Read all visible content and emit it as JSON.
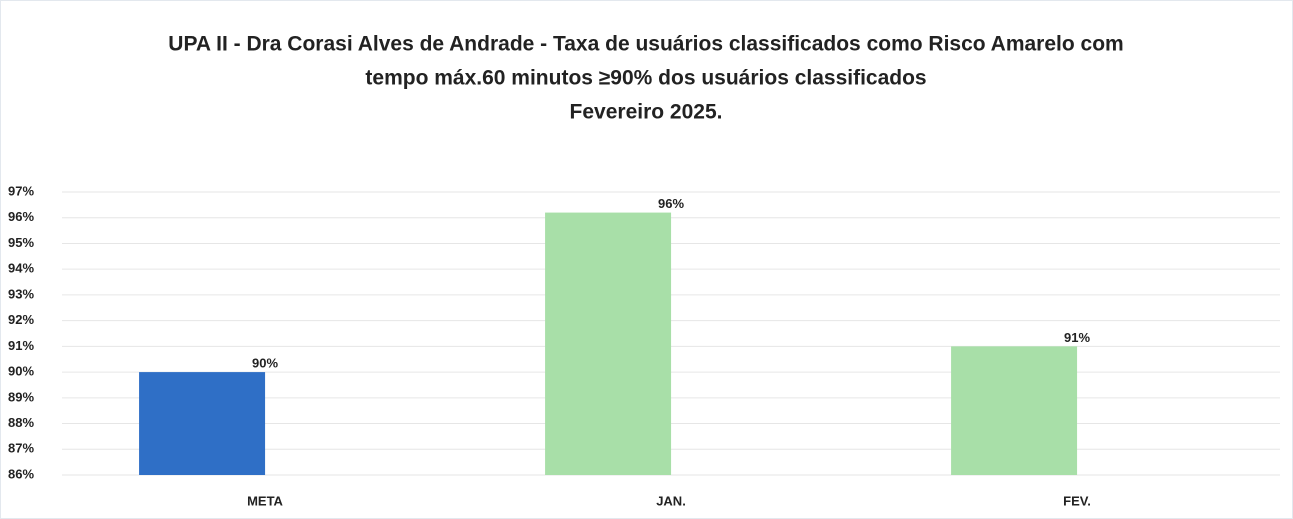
{
  "chart_data": {
    "type": "bar",
    "title": [
      "UPA II - Dra Corasi Alves de Andrade - Taxa de usuários classificados como Risco Amarelo com",
      "tempo máx.60 minutos ≥90% dos usuários classificados",
      "Fevereiro  2025."
    ],
    "categories": [
      "META",
      "JAN.",
      "FEV."
    ],
    "values": [
      90,
      96.2,
      91
    ],
    "value_labels": [
      "90%",
      "96%",
      "91%"
    ],
    "colors": [
      "#2f6fc6",
      "#a8dfa8",
      "#a8dfa8"
    ],
    "ylim": [
      86,
      97
    ],
    "yticks": [
      {
        "value": 86,
        "label": "86%"
      },
      {
        "value": 87,
        "label": "87%"
      },
      {
        "value": 88,
        "label": "88%"
      },
      {
        "value": 89,
        "label": "89%"
      },
      {
        "value": 90,
        "label": "90%"
      },
      {
        "value": 91,
        "label": "91%"
      },
      {
        "value": 92,
        "label": "92%"
      },
      {
        "value": 93,
        "label": "93%"
      },
      {
        "value": 94,
        "label": "94%"
      },
      {
        "value": 95,
        "label": "95%"
      },
      {
        "value": 96,
        "label": "96%"
      },
      {
        "value": 97,
        "label": "97%"
      }
    ],
    "grid": true
  }
}
